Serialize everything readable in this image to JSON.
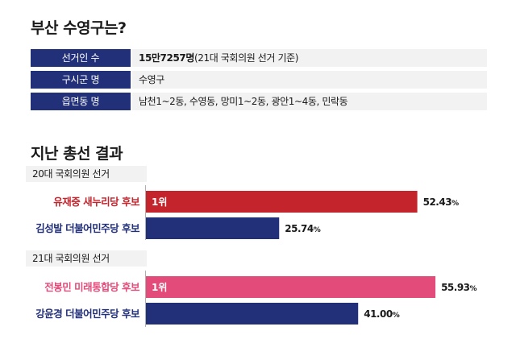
{
  "header": {
    "title": "부산 수영구는?"
  },
  "info": [
    {
      "label": "선거인 수",
      "value_strong": "15만7257명",
      "value_rest": "(21대 국회의원 선거 기준)"
    },
    {
      "label": "구시군 명",
      "value_strong": "",
      "value_rest": "수영구"
    },
    {
      "label": "읍면동 명",
      "value_strong": "",
      "value_rest": "남천1~2동, 수영동, 망미1~2동, 광안1~4동, 민락동"
    }
  ],
  "results_title": "지난 총선 결과",
  "elections": [
    {
      "label": "20대 국회의원 선거"
    },
    {
      "label": "21대 국회의원 선거"
    }
  ],
  "colors": {
    "navy": "#22307a",
    "red": "#c4242c",
    "pink": "#e34b7a",
    "value_bg": "#f2f2f2"
  },
  "chart_data": {
    "type": "bar",
    "orientation": "horizontal",
    "xlim": [
      0,
      60
    ],
    "groups": [
      {
        "name": "20대 국회의원 선거",
        "bars": [
          {
            "label": "유재중 새누리당 후보",
            "value": 52.43,
            "value_text": "52.43",
            "unit": "%",
            "rank": "1위",
            "color": "#c4242c",
            "label_color": "#c4242c"
          },
          {
            "label": "김성발 더불어민주당 후보",
            "value": 25.74,
            "value_text": "25.74",
            "unit": "%",
            "rank": "",
            "color": "#22307a",
            "label_color": "#22307a"
          }
        ]
      },
      {
        "name": "21대 국회의원 선거",
        "bars": [
          {
            "label": "전봉민 미래통합당 후보",
            "value": 55.93,
            "value_text": "55.93",
            "unit": "%",
            "rank": "1위",
            "color": "#e34b7a",
            "label_color": "#e34b7a"
          },
          {
            "label": "강윤경 더불어민주당 후보",
            "value": 41.0,
            "value_text": "41.00",
            "unit": "%",
            "rank": "",
            "color": "#22307a",
            "label_color": "#22307a"
          }
        ]
      }
    ]
  }
}
